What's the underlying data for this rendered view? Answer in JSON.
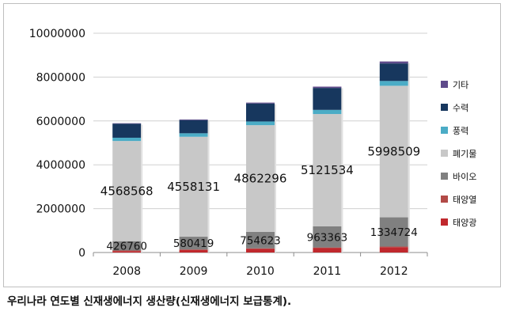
{
  "caption": "우리나라 연도별 신재생에너지 생산량(신재생에너지 보급통계).",
  "colors": {
    "태양광": "#c0282d",
    "태양열": "#b24a47",
    "바이오": "#808080",
    "폐기물": "#c8c8c8",
    "풍력": "#4bacc6",
    "수력": "#17375e",
    "기타": "#5f4b8b"
  },
  "chart_data": {
    "type": "bar",
    "stacked": true,
    "categories": [
      "2008",
      "2009",
      "2010",
      "2011",
      "2012"
    ],
    "ylim": [
      0,
      10000000
    ],
    "yticks": [
      0,
      2000000,
      4000000,
      6000000,
      8000000,
      10000000
    ],
    "ytick_labels": [
      "0",
      "2000000",
      "4000000",
      "6000000",
      "8000000",
      "10000000"
    ],
    "grid": true,
    "legend_position": "right",
    "series": [
      {
        "name": "태양광",
        "values": [
          60000,
          110000,
          160000,
          200000,
          240000
        ]
      },
      {
        "name": "태양열",
        "values": [
          30000,
          30000,
          30000,
          30000,
          30000
        ]
      },
      {
        "name": "바이오",
        "values": [
          426760,
          580419,
          754623,
          963363,
          1334724
        ]
      },
      {
        "name": "폐기물",
        "values": [
          4568568,
          4558131,
          4862296,
          5121534,
          5998509
        ]
      },
      {
        "name": "풍력",
        "values": [
          150000,
          160000,
          170000,
          190000,
          220000
        ]
      },
      {
        "name": "수력",
        "values": [
          640000,
          600000,
          820000,
          1000000,
          800000
        ]
      },
      {
        "name": "기타",
        "values": [
          20000,
          30000,
          40000,
          60000,
          90000
        ]
      }
    ],
    "data_labels": [
      {
        "series": "폐기물",
        "values": [
          "4568568",
          "4558131",
          "4862296",
          "5121534",
          "5998509"
        ]
      },
      {
        "series": "바이오",
        "values": [
          "426760",
          "580419",
          "754623",
          "963363",
          "1334724"
        ]
      }
    ]
  }
}
